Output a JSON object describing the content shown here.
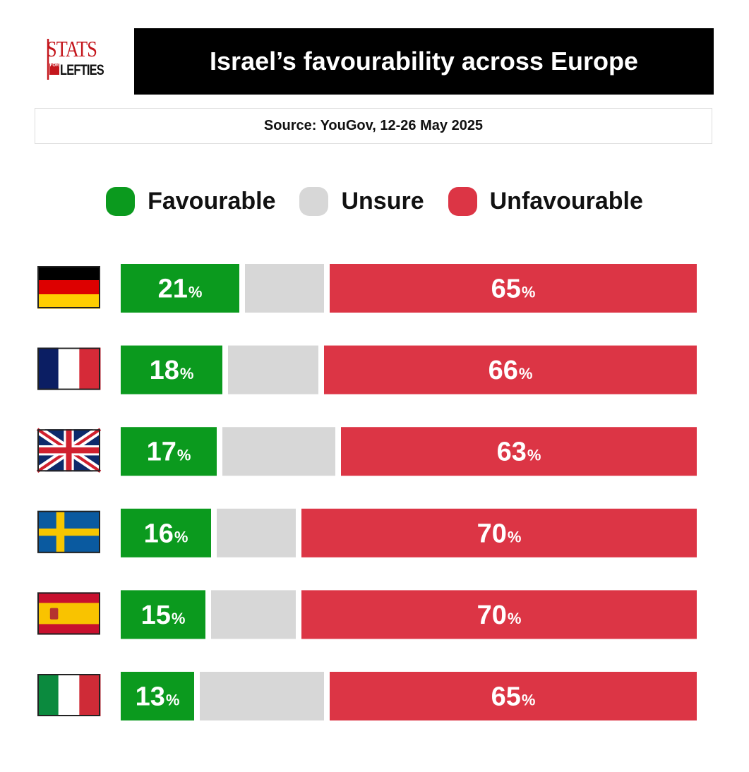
{
  "logo": {
    "line1": "STATS",
    "for": "FOR",
    "line2": "LEFTIES"
  },
  "header": {
    "title": "Israel’s favourability across Europe",
    "source": "Source: YouGov, 12-26 May 2025"
  },
  "colors": {
    "favourable": "#0b9a1e",
    "unsure": "#d7d7d7",
    "unfavourable": "#dc3545",
    "title_bg": "#000000"
  },
  "chart_data": {
    "type": "bar",
    "orientation": "horizontal",
    "stacked": true,
    "title": "Israel’s favourability across Europe",
    "subtitle": "Source: YouGov, 12-26 May 2025",
    "categories": [
      "Germany",
      "France",
      "United Kingdom",
      "Sweden",
      "Spain",
      "Italy"
    ],
    "category_icons": [
      "germany-flag-icon",
      "france-flag-icon",
      "uk-flag-icon",
      "sweden-flag-icon",
      "spain-flag-icon",
      "italy-flag-icon"
    ],
    "series": [
      {
        "name": "Favourable",
        "values": [
          21,
          18,
          17,
          16,
          15,
          13
        ]
      },
      {
        "name": "Unsure",
        "values": [
          14,
          16,
          20,
          14,
          15,
          22
        ]
      },
      {
        "name": "Unfavourable",
        "values": [
          65,
          66,
          63,
          70,
          70,
          65
        ]
      }
    ],
    "unsure_labeled": false,
    "value_suffix": "%",
    "legend": [
      "Favourable",
      "Unsure",
      "Unfavourable"
    ],
    "legend_position": "top",
    "xlim": [
      0,
      100
    ],
    "grid": false
  }
}
